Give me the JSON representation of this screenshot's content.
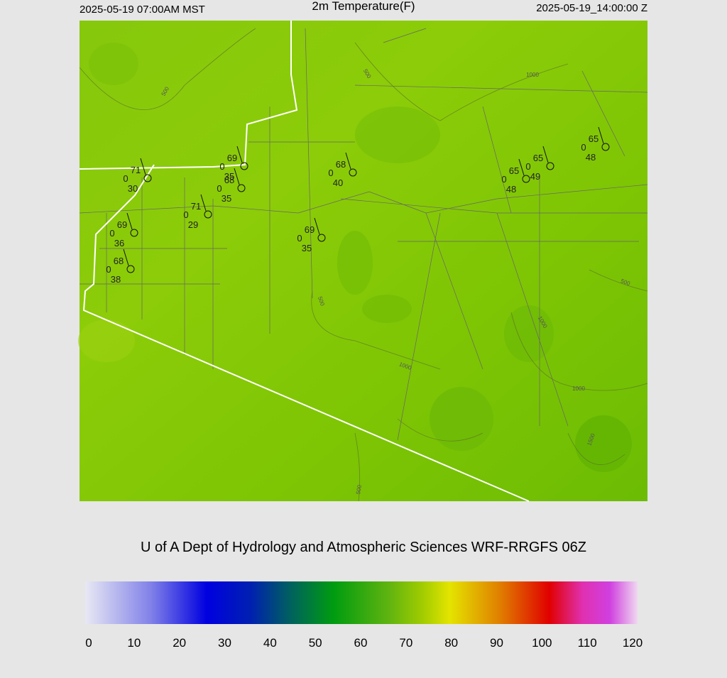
{
  "header": {
    "left": "2025-05-19 07:00AM MST",
    "title": "2m Temperature(F)",
    "right": "2025-05-19_14:00:00 Z"
  },
  "map": {
    "stations": [
      {
        "temp": 71,
        "mid": 0,
        "dew": 30
      },
      {
        "temp": 69,
        "mid": 0,
        "dew": 35
      },
      {
        "temp": 68,
        "mid": 0,
        "dew": 35
      },
      {
        "temp": 71,
        "mid": 0,
        "dew": 29
      },
      {
        "temp": 69,
        "mid": 0,
        "dew": 36
      },
      {
        "temp": 68,
        "mid": 0,
        "dew": 38
      },
      {
        "temp": 69,
        "mid": 0,
        "dew": 35
      },
      {
        "temp": 68,
        "mid": 0,
        "dew": 40
      },
      {
        "temp": 65,
        "mid": 0,
        "dew": 48
      },
      {
        "temp": 65,
        "mid": 0,
        "dew": 49
      },
      {
        "temp": 65,
        "mid": 0,
        "dew": 48
      }
    ],
    "contour_labels": [
      500,
      500,
      1000,
      500,
      500,
      1000,
      1000,
      1000,
      1500,
      500
    ]
  },
  "credit": "U of A Dept of Hydrology and Atmospheric Sciences WRF-RRGFS 06Z",
  "colorbar": {
    "ticks": [
      0,
      10,
      20,
      30,
      40,
      50,
      60,
      70,
      80,
      90,
      100,
      110,
      120
    ]
  }
}
